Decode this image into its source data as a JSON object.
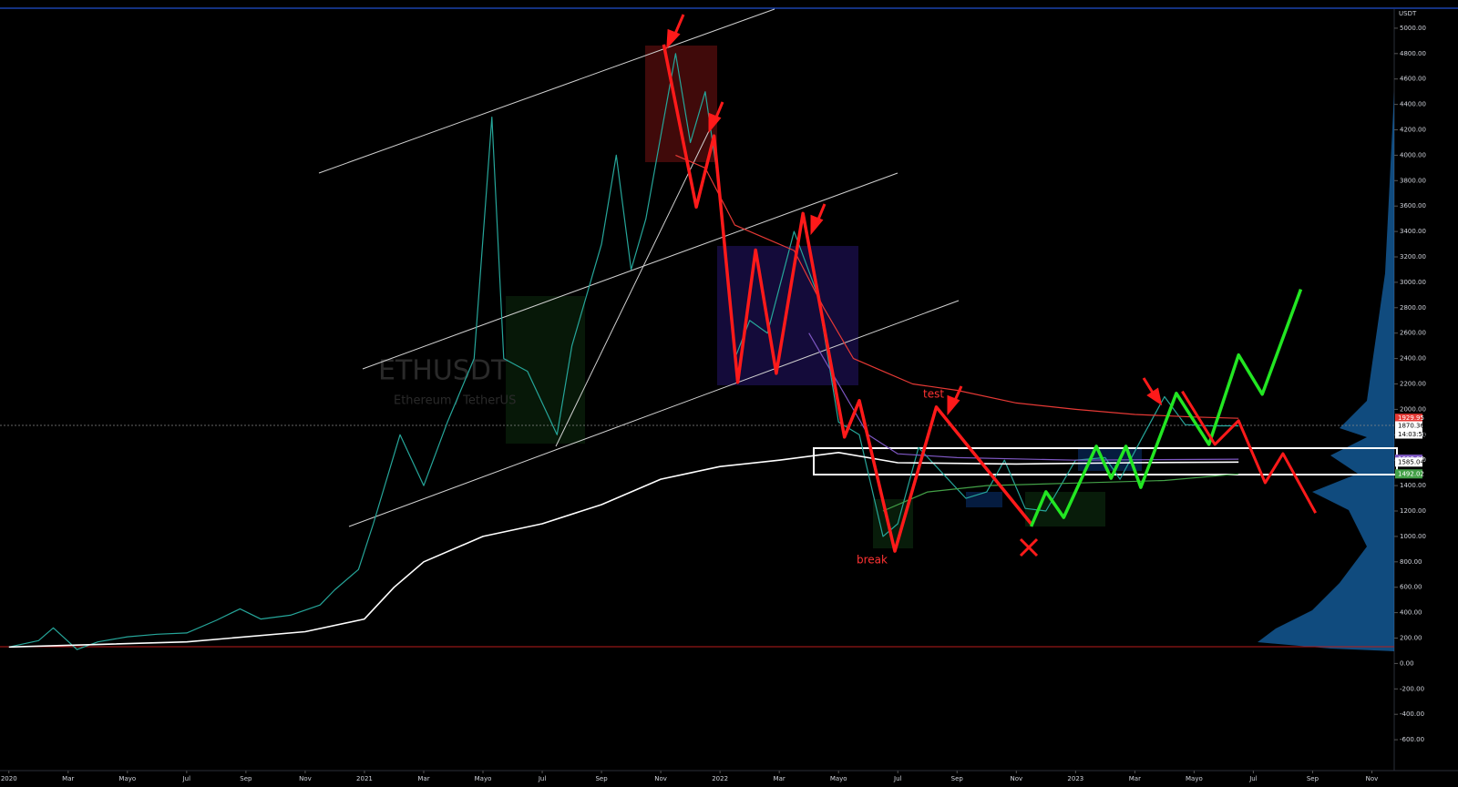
{
  "chart_data": {
    "type": "line",
    "symbol": "ETHUSDT",
    "symbol_description": "Ethereum / TetherUS",
    "currency": "USDT",
    "countdown": "14:03:51",
    "annotations": [
      "test",
      "break"
    ],
    "xlim": [
      -0.3,
      46.6
    ],
    "xticks": [
      {
        "value": 0,
        "label": "2020"
      },
      {
        "value": 2,
        "label": "Mar"
      },
      {
        "value": 4,
        "label": "Mayo"
      },
      {
        "value": 6,
        "label": "Jul"
      },
      {
        "value": 8,
        "label": "Sep"
      },
      {
        "value": 10,
        "label": "Nov"
      },
      {
        "value": 12,
        "label": "2021"
      },
      {
        "value": 14,
        "label": "Mar"
      },
      {
        "value": 16,
        "label": "Mayo"
      },
      {
        "value": 18,
        "label": "Jul"
      },
      {
        "value": 20,
        "label": "Sep"
      },
      {
        "value": 22,
        "label": "Nov"
      },
      {
        "value": 24,
        "label": "2022"
      },
      {
        "value": 26,
        "label": "Mar"
      },
      {
        "value": 28,
        "label": "Mayo"
      },
      {
        "value": 30,
        "label": "Jul"
      },
      {
        "value": 32,
        "label": "Sep"
      },
      {
        "value": 34,
        "label": "Nov"
      },
      {
        "value": 36,
        "label": "2023"
      },
      {
        "value": 38,
        "label": "Mar"
      },
      {
        "value": 40,
        "label": "Mayo"
      },
      {
        "value": 42,
        "label": "Jul"
      },
      {
        "value": 44,
        "label": "Sep"
      },
      {
        "value": 46,
        "label": "Nov"
      }
    ],
    "ylim": [
      -800,
      5150
    ],
    "yticks": [
      {
        "value": 5000,
        "label": "5000.00"
      },
      {
        "value": 4800,
        "label": "4800.00"
      },
      {
        "value": 4600,
        "label": "4600.00"
      },
      {
        "value": 4400,
        "label": "4400.00"
      },
      {
        "value": 4200,
        "label": "4200.00"
      },
      {
        "value": 4000,
        "label": "4000.00"
      },
      {
        "value": 3800,
        "label": "3800.00"
      },
      {
        "value": 3600,
        "label": "3600.00"
      },
      {
        "value": 3400,
        "label": "3400.00"
      },
      {
        "value": 3200,
        "label": "3200.00"
      },
      {
        "value": 3000,
        "label": "3000.00"
      },
      {
        "value": 2800,
        "label": "2800.00"
      },
      {
        "value": 2600,
        "label": "2600.00"
      },
      {
        "value": 2400,
        "label": "2400.00"
      },
      {
        "value": 2200,
        "label": "2200.00"
      },
      {
        "value": 2000,
        "label": "2000.00"
      },
      {
        "value": 1800,
        "label": "1800.00"
      },
      {
        "value": 1600,
        "label": "1600.00"
      },
      {
        "value": 1400,
        "label": "1400.00"
      },
      {
        "value": 1200,
        "label": "1200.00"
      },
      {
        "value": 1000,
        "label": "1000.00"
      },
      {
        "value": 800,
        "label": "800.00"
      },
      {
        "value": 600,
        "label": "600.00"
      },
      {
        "value": 400,
        "label": "400.00"
      },
      {
        "value": 200,
        "label": "200.00"
      },
      {
        "value": 0,
        "label": "0.00"
      },
      {
        "value": -200,
        "label": "-200.00"
      },
      {
        "value": -400,
        "label": "-400.00"
      },
      {
        "value": -600,
        "label": "-600.00"
      }
    ],
    "grid": false,
    "price_labels": [
      {
        "value": 1929.95,
        "color": "#e53935"
      },
      {
        "value": 1870.36,
        "color": "#ffffff"
      },
      {
        "value": {
          "value": 1608,
          "label": "1608.00"
        },
        "color": "#7e57c2"
      },
      {
        "value": 1585.04,
        "color": "#ffffff"
      },
      {
        "value": 1492.02,
        "color": "#43a047"
      }
    ],
    "series": [
      {
        "color": "#26a69a",
        "width": 1.2,
        "x": [
          0,
          1,
          1.5,
          2.3,
          3,
          4,
          5,
          6,
          7,
          7.8,
          8.5,
          9.5,
          10.5,
          11,
          11.8,
          12.3,
          13.2,
          14,
          14.8,
          15.7,
          16.3,
          16.7,
          17.5,
          18.5,
          19,
          20,
          20.5,
          21,
          21.5,
          22.5,
          23,
          23.5,
          24,
          24.5,
          25,
          25.6,
          26.5,
          27.3,
          28,
          28.7,
          29.5,
          30,
          30.7,
          31.5,
          32.3,
          33,
          33.6,
          34.3,
          35,
          36,
          37,
          37.5,
          38.3,
          39,
          39.7,
          40.5,
          41.5
        ],
        "values": [
          130,
          180,
          280,
          110,
          170,
          210,
          230,
          240,
          340,
          430,
          350,
          380,
          460,
          580,
          740,
          1100,
          1800,
          1400,
          1900,
          2400,
          4300,
          2400,
          2300,
          1800,
          2500,
          3300,
          4000,
          3100,
          3500,
          4800,
          4100,
          4500,
          3700,
          2400,
          2700,
          2600,
          3400,
          2900,
          1900,
          1800,
          1000,
          1100,
          1700,
          1500,
          1300,
          1350,
          1600,
          1220,
          1200,
          1600,
          1620,
          1450,
          1800,
          2100,
          1880,
          1870,
          1870
        ]
      },
      {
        "color": "#ffffff",
        "width": 1.6,
        "x": [
          0,
          6,
          10,
          12,
          13,
          14,
          16,
          18,
          20,
          22,
          24,
          26,
          28,
          30,
          34,
          38,
          41.5
        ],
        "values": [
          130,
          170,
          250,
          350,
          600,
          800,
          1000,
          1100,
          1250,
          1450,
          1550,
          1600,
          1660,
          1580,
          1570,
          1580,
          1585
        ]
      },
      {
        "color": "#e53935",
        "width": 1.2,
        "x": [
          22.5,
          23.5,
          24.5,
          25.5,
          26.5,
          27.5,
          28.5,
          29.5,
          30.5,
          32,
          34,
          36,
          38,
          40,
          41.5
        ],
        "values": [
          4000,
          3900,
          3450,
          3350,
          3250,
          2800,
          2400,
          2300,
          2200,
          2150,
          2050,
          2000,
          1960,
          1940,
          1930
        ]
      },
      {
        "color": "#7e57c2",
        "width": 1.2,
        "x": [
          27,
          28,
          29,
          30,
          32,
          36,
          41.5
        ],
        "values": [
          2600,
          2200,
          1800,
          1650,
          1620,
          1600,
          1608
        ]
      },
      {
        "color": "#43a047",
        "width": 1.2,
        "x": [
          29.5,
          31,
          33,
          36,
          39,
          41.5
        ],
        "values": [
          1200,
          1350,
          1400,
          1420,
          1440,
          1492
        ]
      },
      {
        "color": "#ff1a1a",
        "width": 3.5,
        "x": [
          22.1,
          23.2,
          23.8,
          24.6,
          25.2,
          25.9,
          26.8,
          28.2,
          28.7,
          29.9,
          31.3,
          34.5
        ],
        "values": [
          4871,
          3592,
          4152,
          2213,
          3254,
          2284,
          3542,
          1782,
          2069,
          884,
          2019,
          1099
        ]
      },
      {
        "color": "#22e622",
        "width": 3.5,
        "x": [
          34.5,
          35,
          35.6,
          36.7,
          37.2,
          37.7,
          38.2,
          39.4,
          40.5,
          41.5,
          42.3,
          43.6
        ],
        "values": [
          1078,
          1351,
          1149,
          1710,
          1458,
          1710,
          1386,
          2126,
          1724,
          2428,
          2119,
          2945
        ]
      },
      {
        "color": "#ff1a1a",
        "width": 3,
        "x": [
          39.6,
          40.7,
          41.5,
          42.4,
          43,
          44.1
        ],
        "values": [
          2141,
          1724,
          1911,
          1422,
          1652,
          1185
        ]
      }
    ]
  }
}
